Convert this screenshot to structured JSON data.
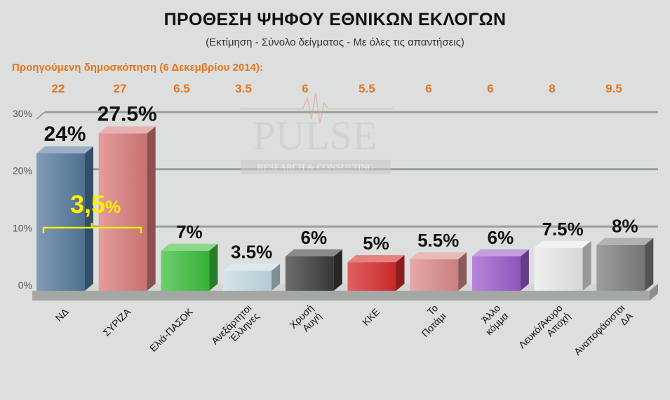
{
  "header": {
    "title": "ΠΡΟΘΕΣΗ ΨΗΦΟΥ ΕΘΝΙΚΩΝ ΕΚΛΟΓΩΝ",
    "subtitle": "(Εκτίμηση - Σύνολο δείγματος - Με όλες τις απαντήσεις)"
  },
  "previous_poll": {
    "label": "Προηγούμενη δημοσκόπηση (6 Δεκεμβρίου 2014):",
    "values": [
      "22",
      "27",
      "6.5",
      "3.5",
      "6",
      "5.5",
      "6",
      "6",
      "8",
      "9.5"
    ]
  },
  "watermark": {
    "name": "PULSE",
    "tagline": "RESEARCH & CONSULTING"
  },
  "annotation": {
    "gap_number": "3,5",
    "gap_unit": "%"
  },
  "colors": {
    "previous": "#e8741c",
    "annotation": "#ffee00"
  },
  "chart_data": {
    "type": "bar",
    "title": "ΠΡΟΘΕΣΗ ΨΗΦΟΥ ΕΘΝΙΚΩΝ ΕΚΛΟΓΩΝ",
    "subtitle": "(Εκτίμηση - Σύνολο δείγματος - Με όλες τις απαντήσεις)",
    "categories": [
      "ΝΔ",
      "ΣΥΡΙΖΑ",
      "Ελιά-ΠΑΣΟΚ",
      "Ανεξάρτητοι Έλληνες",
      "Χρυσή Αυγή",
      "ΚΚΕ",
      "Το Ποτάμι",
      "Άλλο κόμμα",
      "Λευκό/Άκυρο Αποχή",
      "Αναποφάσιστοι ΔΑ"
    ],
    "values": [
      24,
      27.5,
      7,
      3.5,
      6,
      5,
      5.5,
      6,
      7.5,
      8
    ],
    "data_labels": [
      "24%",
      "27.5%",
      "7%",
      "3.5%",
      "6%",
      "5%",
      "5.5%",
      "6%",
      "7.5%",
      "8%"
    ],
    "bar_colors": [
      "#557a9c",
      "#d97b7b",
      "#3cbf3c",
      "#c5dce4",
      "#3c3c3c",
      "#d82c2c",
      "#dc8b8b",
      "#9c5ccc",
      "#eaeaea",
      "#7e7e7e"
    ],
    "ylim": [
      0,
      30
    ],
    "yticks": [
      "0%",
      "10%",
      "20%",
      "30%"
    ],
    "grid": true,
    "legend": "none"
  }
}
